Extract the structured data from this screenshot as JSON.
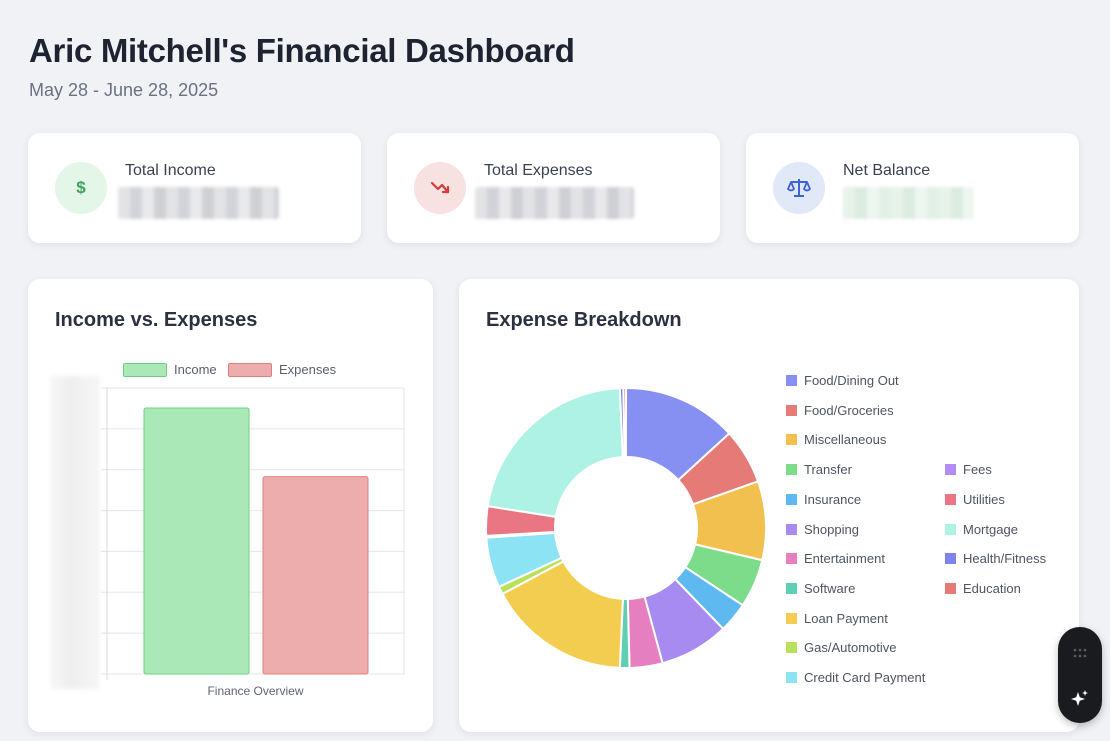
{
  "header": {
    "title": "Aric Mitchell's Financial Dashboard",
    "date_range": "May 28 - June 28, 2025"
  },
  "stats": [
    {
      "label": "Total Income",
      "icon": "dollar-icon",
      "icon_bg": "#e3f6e8",
      "icon_color": "#3fa35c"
    },
    {
      "label": "Total Expenses",
      "icon": "trending-down-icon",
      "icon_bg": "#f8e1e1",
      "icon_color": "#d23c3c"
    },
    {
      "label": "Net Balance",
      "icon": "scale-icon",
      "icon_bg": "#e1e8f8",
      "icon_color": "#3d63d8"
    }
  ],
  "income_chart": {
    "title": "Income vs. Expenses",
    "xlabel": "Finance Overview"
  },
  "expense_chart": {
    "title": "Expense Breakdown"
  },
  "chart_data": [
    {
      "type": "bar",
      "categories": [
        "Finance Overview"
      ],
      "series": [
        {
          "name": "Income",
          "values": [
            0.93
          ],
          "fill": "#abe8b8",
          "stroke": "#6ccf85"
        },
        {
          "name": "Expenses",
          "values": [
            0.69
          ],
          "fill": "#eeadad",
          "stroke": "#e07f7f"
        }
      ],
      "xlabel": "Finance Overview",
      "ylabel": "",
      "grid": true,
      "legend_position": "top"
    },
    {
      "type": "pie",
      "donut": true,
      "title": "Expense Breakdown",
      "slices": [
        {
          "label": "Food/Dining Out",
          "value": 13.2,
          "color": "#8690f2"
        },
        {
          "label": "Food/Groceries",
          "value": 6.4,
          "color": "#e67a76"
        },
        {
          "label": "Miscellaneous",
          "value": 9.1,
          "color": "#f2c04e"
        },
        {
          "label": "Transfer",
          "value": 5.6,
          "color": "#7ddc8a"
        },
        {
          "label": "Insurance",
          "value": 3.5,
          "color": "#5fb9f1"
        },
        {
          "label": "Shopping",
          "value": 8.0,
          "color": "#a78bf0"
        },
        {
          "label": "Entertainment",
          "value": 3.8,
          "color": "#e67fbf"
        },
        {
          "label": "Software",
          "value": 1.1,
          "color": "#5fcfb4"
        },
        {
          "label": "Loan Payment",
          "value": 16.5,
          "color": "#f2cd4f"
        },
        {
          "label": "Gas/Automotive",
          "value": 0.9,
          "color": "#b9e05b"
        },
        {
          "label": "Credit Card Payment",
          "value": 5.8,
          "color": "#8be3f4"
        },
        {
          "label": "Fees",
          "value": 0.2,
          "color": "#b38cf5"
        },
        {
          "label": "Utilities",
          "value": 3.4,
          "color": "#ea7583"
        },
        {
          "label": "Mortgage",
          "value": 21.8,
          "color": "#aef2e6"
        },
        {
          "label": "Health/Fitness",
          "value": 0.4,
          "color": "#7e83ee"
        },
        {
          "label": "Education",
          "value": 0.3,
          "color": "#e67a76"
        }
      ]
    }
  ]
}
